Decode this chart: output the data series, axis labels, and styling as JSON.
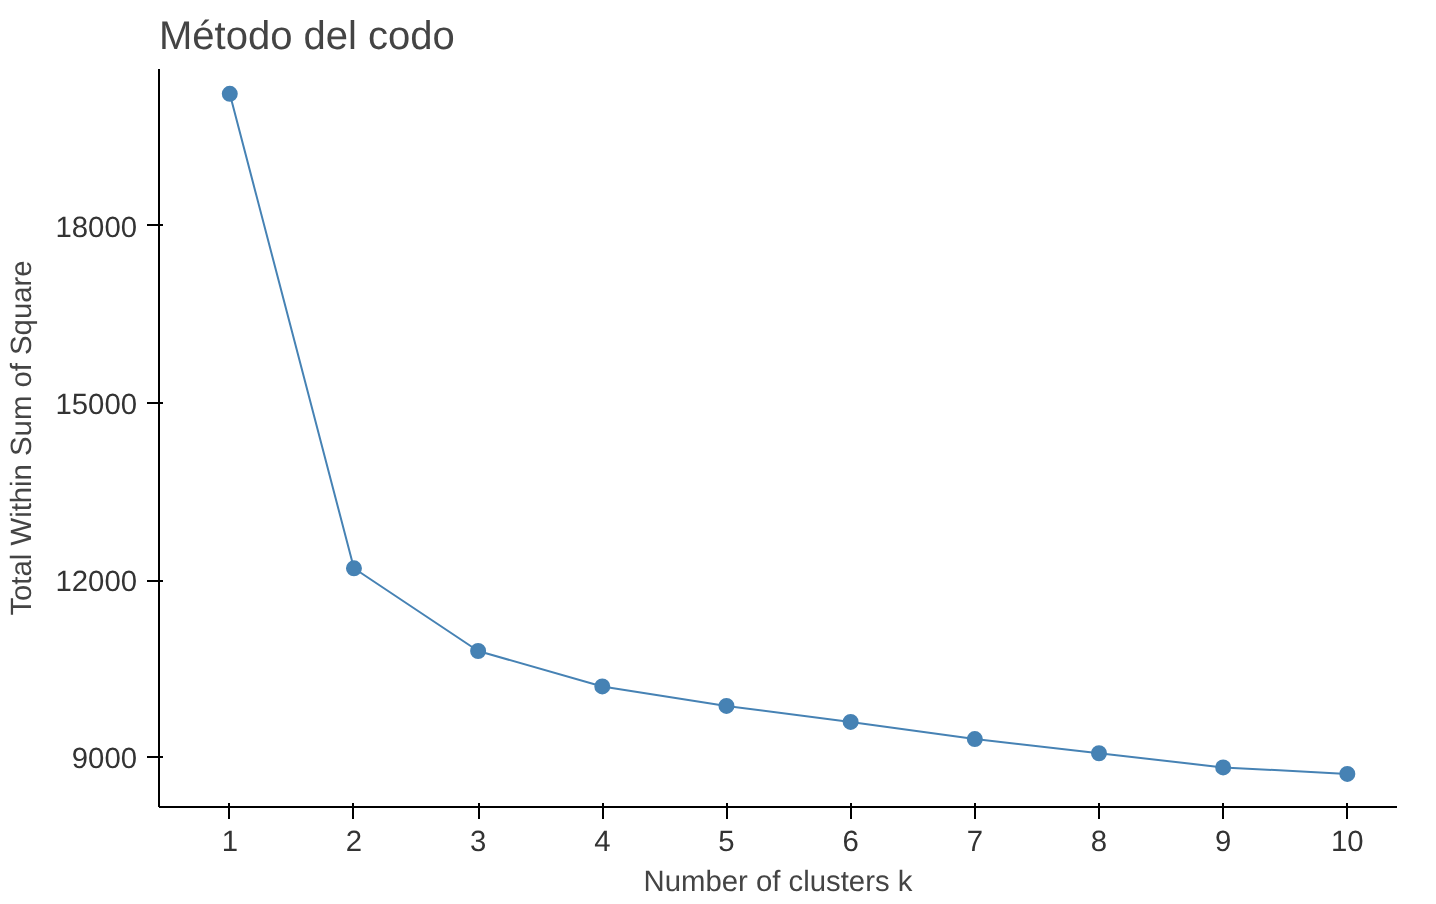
{
  "chart_data": {
    "type": "line",
    "title": "Método del codo",
    "xlabel": "Number of clusters k",
    "ylabel": "Total Within Sum of Square",
    "x": [
      1,
      2,
      3,
      4,
      5,
      6,
      7,
      8,
      9,
      10
    ],
    "series": [
      {
        "color": "#4682b4",
        "values": [
          20230,
          12200,
          10800,
          10200,
          9870,
          9600,
          9310,
          9070,
          8830,
          8720
        ]
      }
    ],
    "xlim": [
      0.43,
      10.4
    ],
    "ylim": [
      8160,
      20650
    ],
    "xticks": [
      1,
      2,
      3,
      4,
      5,
      6,
      7,
      8,
      9,
      10
    ],
    "yticks": [
      9000,
      12000,
      15000,
      18000
    ],
    "marker": "circle",
    "line_style": "solid",
    "grid": false
  }
}
